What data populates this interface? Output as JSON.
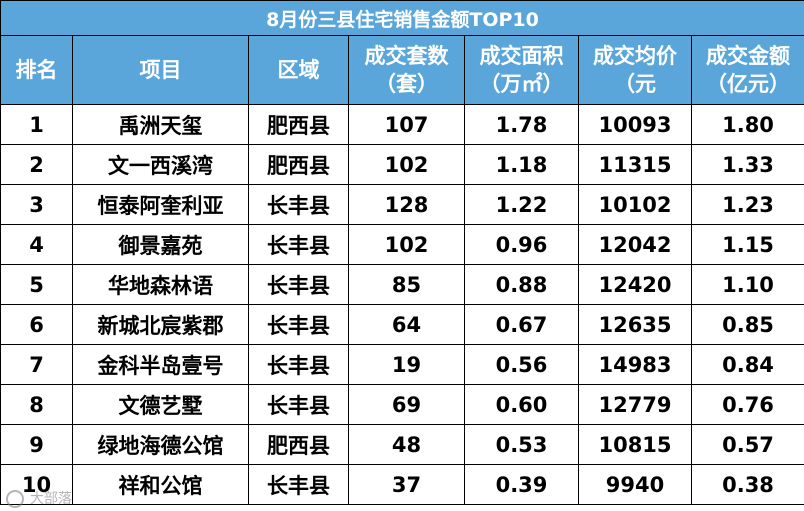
{
  "chart_data": {
    "type": "table",
    "title": "8月份三县住宅销售金额TOP10",
    "columns": [
      {
        "line1": "排名",
        "line2": ""
      },
      {
        "line1": "项目",
        "line2": ""
      },
      {
        "line1": "区域",
        "line2": ""
      },
      {
        "line1": "成交套数",
        "line2": "（套）"
      },
      {
        "line1": "成交面积",
        "line2": "（万㎡）"
      },
      {
        "line1": "成交均价",
        "line2": "（元"
      },
      {
        "line1": "成交金额",
        "line2": "（亿元）"
      }
    ],
    "rows": [
      [
        "1",
        "禹洲天玺",
        "肥西县",
        "107",
        "1.78",
        "10093",
        "1.80"
      ],
      [
        "2",
        "文一西溪湾",
        "肥西县",
        "102",
        "1.18",
        "11315",
        "1.33"
      ],
      [
        "3",
        "恒泰阿奎利亚",
        "长丰县",
        "128",
        "1.22",
        "10102",
        "1.23"
      ],
      [
        "4",
        "御景嘉苑",
        "长丰县",
        "102",
        "0.96",
        "12042",
        "1.15"
      ],
      [
        "5",
        "华地森林语",
        "长丰县",
        "85",
        "0.88",
        "12420",
        "1.10"
      ],
      [
        "6",
        "新城北宸紫郡",
        "长丰县",
        "64",
        "0.67",
        "12635",
        "0.85"
      ],
      [
        "7",
        "金科半岛壹号",
        "长丰县",
        "19",
        "0.56",
        "14983",
        "0.84"
      ],
      [
        "8",
        "文德艺墅",
        "长丰县",
        "69",
        "0.60",
        "12779",
        "0.76"
      ],
      [
        "9",
        "绿地海德公馆",
        "肥西县",
        "48",
        "0.53",
        "10815",
        "0.57"
      ],
      [
        "10",
        "祥和公馆",
        "长丰县",
        "37",
        "0.39",
        "9940",
        "0.38"
      ]
    ],
    "colors": {
      "header_bg": "#5aa6db",
      "header_text": "#ffffff",
      "border": "#000000"
    }
  },
  "watermark": "大部落"
}
